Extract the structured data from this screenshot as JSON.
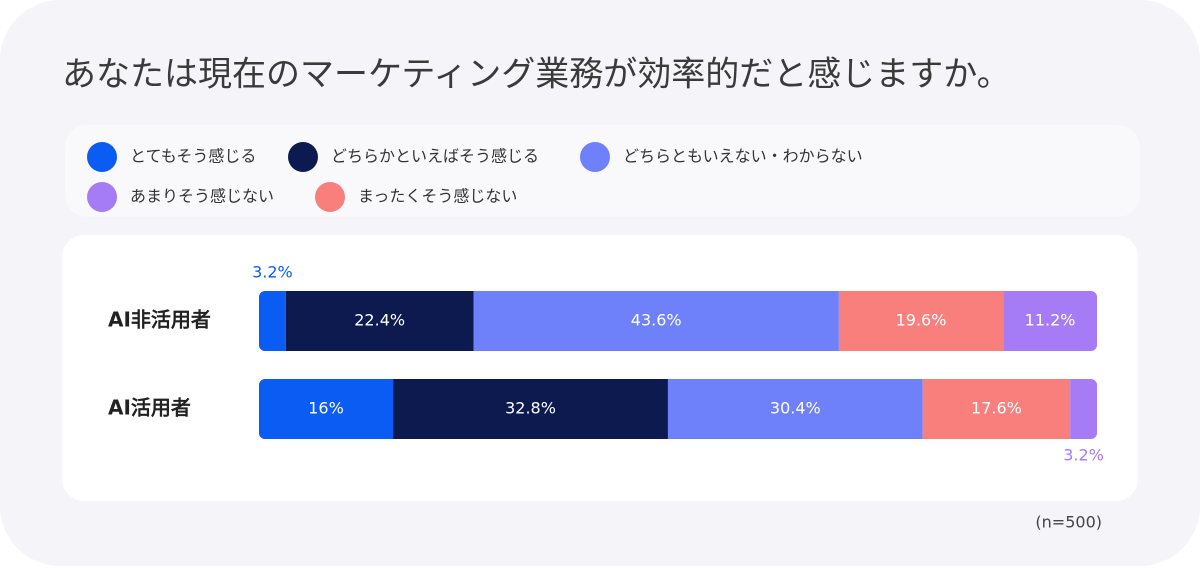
{
  "chart_data": {
    "type": "stacked-bar-100",
    "title": "あなたは現在のマーケティング業務が効率的だと感じますか。",
    "note": "(n=500)",
    "categories": [
      "AI非活用者",
      "AI活用者"
    ],
    "series": [
      {
        "name": "とてもそう感じる",
        "color": "#0a5cf2",
        "values": [
          3.2,
          16
        ],
        "value_labels": [
          "3.2%",
          "16%"
        ]
      },
      {
        "name": "どちらかといえばそう感じる",
        "color": "#0c1a50",
        "values": [
          22.4,
          32.8
        ],
        "value_labels": [
          "22.4%",
          "32.8%"
        ]
      },
      {
        "name": "どちらともいえない・わからない",
        "color": "#6e80fa",
        "values": [
          43.6,
          30.4
        ],
        "value_labels": [
          "43.6%",
          "30.4%"
        ]
      },
      {
        "name": "あまりそう感じない",
        "color": "#a67cf6",
        "values": [
          11.2,
          3.2
        ],
        "value_labels": [
          "11.2%",
          "3.2%"
        ]
      },
      {
        "name": "まったくそう感じない",
        "color": "#f97f7d",
        "values": [
          19.6,
          17.6
        ],
        "value_labels": [
          "19.6%",
          "17.6%"
        ]
      }
    ]
  }
}
